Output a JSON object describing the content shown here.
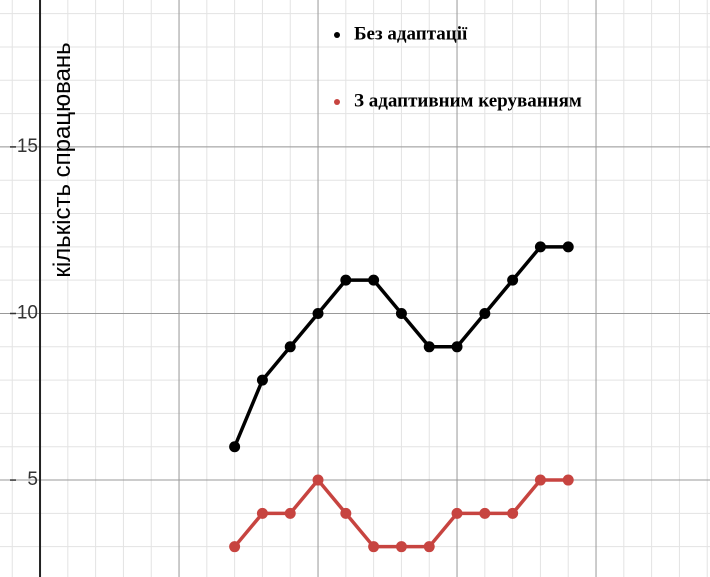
{
  "chart_data": {
    "type": "line",
    "y_label": "кількість спрацювань",
    "x": [
      7,
      8,
      9,
      10,
      11,
      12,
      13,
      14,
      15,
      16,
      17,
      18,
      19
    ],
    "series": [
      {
        "name": "Без адаптації",
        "color": "#000000",
        "values": [
          6,
          8,
          9,
          10,
          11,
          11,
          10,
          9,
          9,
          10,
          11,
          12,
          12
        ]
      },
      {
        "name": "З адаптивним керуванням",
        "color": "#c74440",
        "values": [
          3,
          4,
          4,
          5,
          4,
          3,
          3,
          3,
          4,
          4,
          4,
          5,
          5
        ]
      }
    ],
    "xlim": [
      -1.44,
      24.1
    ],
    "xticks": [
      5,
      10,
      15,
      20
    ],
    "ylim": [
      2.09,
      19.41
    ],
    "yticks": [
      5,
      10,
      15
    ],
    "grid": true
  }
}
